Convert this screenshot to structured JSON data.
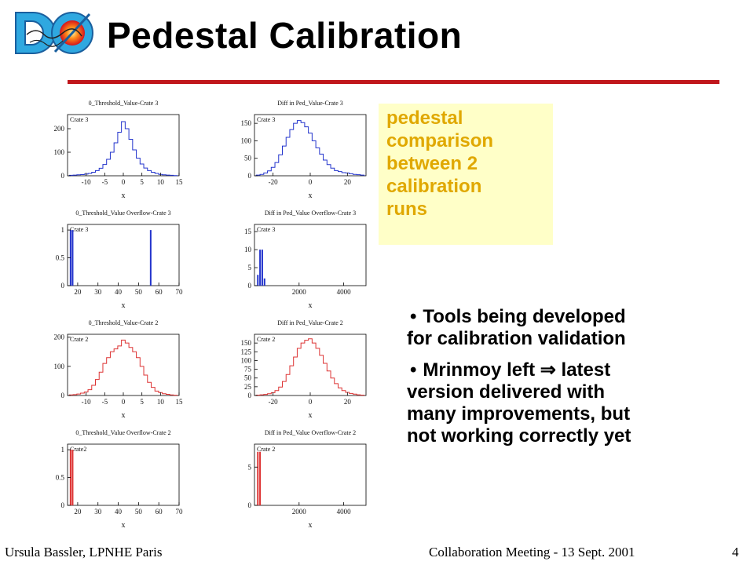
{
  "slide": {
    "logo_text": "DØ",
    "title": "Pedestal Calibration"
  },
  "callout": {
    "lines": [
      "pedestal",
      "comparison",
      "between 2",
      "calibration",
      "runs"
    ]
  },
  "bullets": [
    {
      "lines": [
        "Tools being developed",
        "for calibration validation"
      ]
    },
    {
      "lines": [
        "Mrinmoy left ⇒ latest",
        "version delivered with",
        "many improvements, but",
        "not working correctly yet"
      ]
    }
  ],
  "footer": {
    "author": "Ursula Bassler, LPNHE Paris",
    "meeting": "Collaboration Meeting - 13 Sept. 2001",
    "page": "4"
  },
  "colors": {
    "rule": "#c0161c",
    "callout_bg": "#ffffc8",
    "callout_text": "#e0a800",
    "crate3": "#2233cc",
    "crate2": "#dd3333"
  },
  "chart_data": [
    {
      "type": "bar",
      "title": "0_Threshold_Value-Crate 3",
      "label": "Crate 3",
      "xlabel": "x",
      "color": "#2233cc",
      "xlim": [
        -15,
        15
      ],
      "ylim": [
        0,
        260
      ],
      "xticks": [
        -10,
        -5,
        0,
        5,
        10,
        15
      ],
      "yticks": [
        0,
        100,
        200
      ],
      "x": [
        -14,
        -13,
        -12,
        -11,
        -10,
        -9,
        -8,
        -7,
        -6,
        -5,
        -4,
        -3,
        -2,
        -1,
        0,
        1,
        2,
        3,
        4,
        5,
        6,
        7,
        8,
        9,
        10,
        11,
        12,
        13,
        14
      ],
      "values": [
        2,
        3,
        4,
        5,
        7,
        10,
        15,
        22,
        32,
        48,
        70,
        100,
        140,
        185,
        230,
        200,
        155,
        110,
        75,
        50,
        33,
        22,
        15,
        10,
        6,
        4,
        3,
        2,
        1
      ]
    },
    {
      "type": "bar",
      "title": "Diff in Ped_Value-Crate 3",
      "label": "Crate 3",
      "xlabel": "x",
      "color": "#2233cc",
      "xlim": [
        -30,
        30
      ],
      "ylim": [
        0,
        175
      ],
      "xticks": [
        -20,
        0,
        20
      ],
      "yticks": [
        0,
        50,
        100,
        150
      ],
      "x": [
        -28,
        -26,
        -24,
        -22,
        -20,
        -18,
        -16,
        -14,
        -12,
        -10,
        -8,
        -6,
        -4,
        -2,
        0,
        2,
        4,
        6,
        8,
        10,
        12,
        14,
        16,
        18,
        20,
        22,
        24,
        26,
        28
      ],
      "values": [
        2,
        4,
        8,
        14,
        24,
        38,
        60,
        85,
        110,
        132,
        150,
        158,
        152,
        140,
        122,
        100,
        80,
        62,
        45,
        32,
        22,
        15,
        12,
        9,
        8,
        6,
        4,
        3,
        2
      ]
    },
    {
      "type": "bar",
      "title": "0_Threshold_Value Overflow-Crate 3",
      "label": "Crate 3",
      "xlabel": "x",
      "color": "#2233cc",
      "xlim": [
        15,
        70
      ],
      "ylim": [
        0,
        1.1
      ],
      "xticks": [
        20,
        30,
        40,
        50,
        60,
        70
      ],
      "yticks": [
        0,
        0.5,
        1
      ],
      "x": [
        16.5,
        17.5,
        56
      ],
      "values": [
        1,
        1,
        1
      ]
    },
    {
      "type": "bar",
      "title": "Diff in Ped_Value Overflow-Crate 3",
      "label": "Crate 3",
      "xlabel": "x",
      "color": "#2233cc",
      "xlim": [
        0,
        5000
      ],
      "ylim": [
        0,
        17
      ],
      "xticks": [
        2000,
        4000
      ],
      "yticks": [
        0,
        5,
        10,
        15
      ],
      "x": [
        150,
        250,
        350,
        450
      ],
      "values": [
        3,
        10,
        10,
        2
      ]
    },
    {
      "type": "bar",
      "title": "0_Threshold_Value-Crate 2",
      "label": "Crate 2",
      "xlabel": "x",
      "color": "#dd3333",
      "xlim": [
        -15,
        15
      ],
      "ylim": [
        0,
        210
      ],
      "xticks": [
        -10,
        -5,
        0,
        5,
        10,
        15
      ],
      "yticks": [
        0,
        100,
        200
      ],
      "x": [
        -14,
        -13,
        -12,
        -11,
        -10,
        -9,
        -8,
        -7,
        -6,
        -5,
        -4,
        -3,
        -2,
        -1,
        0,
        1,
        2,
        3,
        4,
        5,
        6,
        7,
        8,
        9,
        10,
        11,
        12,
        13,
        14
      ],
      "values": [
        2,
        3,
        5,
        8,
        12,
        20,
        35,
        55,
        80,
        110,
        130,
        150,
        160,
        170,
        190,
        180,
        165,
        150,
        130,
        100,
        70,
        45,
        28,
        15,
        10,
        6,
        4,
        2,
        1
      ]
    },
    {
      "type": "bar",
      "title": "Diff in Ped_Value-Crate 2",
      "label": "Crate 2",
      "xlabel": "x",
      "color": "#dd3333",
      "xlim": [
        -30,
        30
      ],
      "ylim": [
        0,
        175
      ],
      "xticks": [
        -20,
        0,
        20
      ],
      "yticks": [
        0,
        25,
        50,
        75,
        100,
        125,
        150
      ],
      "x": [
        -28,
        -26,
        -24,
        -22,
        -20,
        -18,
        -16,
        -14,
        -12,
        -10,
        -8,
        -6,
        -4,
        -2,
        0,
        2,
        4,
        6,
        8,
        10,
        12,
        14,
        16,
        18,
        20,
        22,
        24,
        26,
        28
      ],
      "values": [
        1,
        2,
        3,
        5,
        8,
        14,
        24,
        40,
        60,
        85,
        110,
        135,
        150,
        158,
        162,
        150,
        135,
        115,
        92,
        70,
        50,
        34,
        22,
        14,
        9,
        6,
        4,
        2,
        1
      ]
    },
    {
      "type": "bar",
      "title": "0_Threshold_Value Overflow-Crate 2",
      "label": "Crate2",
      "xlabel": "x",
      "color": "#dd3333",
      "xlim": [
        15,
        70
      ],
      "ylim": [
        0,
        1.1
      ],
      "xticks": [
        20,
        30,
        40,
        50,
        60,
        70
      ],
      "yticks": [
        0,
        0.5,
        1
      ],
      "x": [
        16.5,
        17.5
      ],
      "values": [
        1,
        1
      ]
    },
    {
      "type": "bar",
      "title": "Diff in Ped_Value Overflow-Crate 2",
      "label": "Crate 2",
      "xlabel": "x",
      "color": "#dd3333",
      "xlim": [
        0,
        5000
      ],
      "ylim": [
        0,
        8
      ],
      "xticks": [
        2000,
        4000
      ],
      "yticks": [
        0,
        5
      ],
      "x": [
        150,
        250
      ],
      "values": [
        7,
        7
      ]
    }
  ]
}
